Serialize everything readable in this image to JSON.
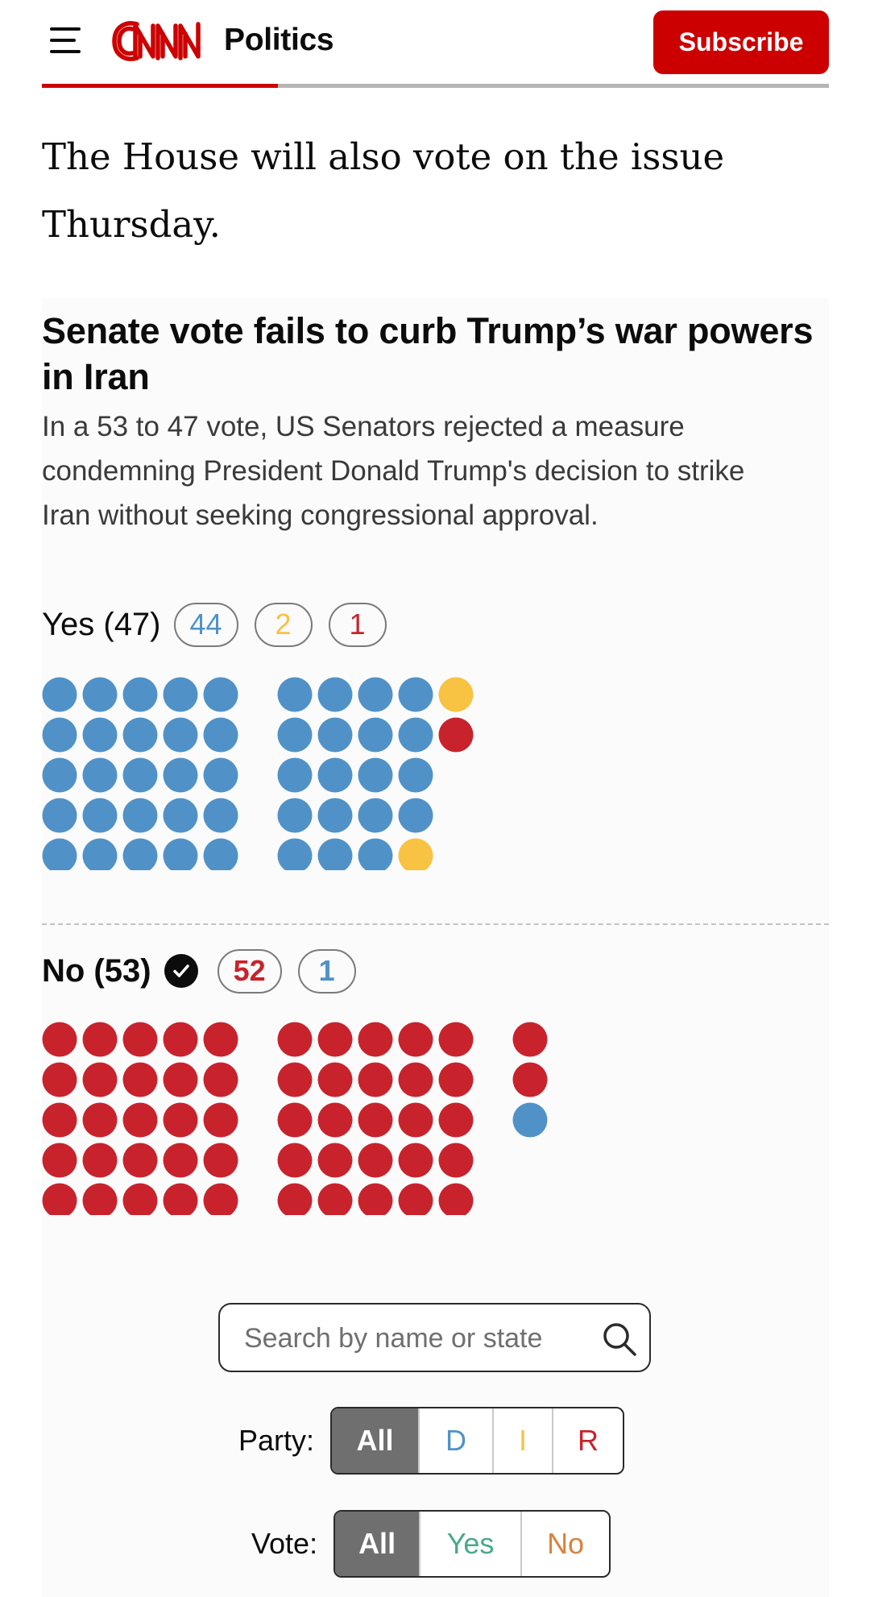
{
  "header": {
    "section": "Politics",
    "logo_text": "CNN",
    "subscribe_label": "Subscribe",
    "read_progress": 0.3
  },
  "article": {
    "paragraph": "The House will also vote on the issue Thursday."
  },
  "graphic": {
    "title": "Senate vote fails to curb Trump’s war powers in Iran",
    "description": "In a 53 to 47 vote, US Senators rejected a measure condemning President Donald Trump's decision to strike Iran without seeking congressional approval.",
    "colors": {
      "D": "#5092c7",
      "I": "#f8c242",
      "R": "#c8232c"
    },
    "yes": {
      "label": "Yes (47)",
      "counts": [
        {
          "party": "D",
          "value": "44"
        },
        {
          "party": "I",
          "value": "2"
        },
        {
          "party": "R",
          "value": "1"
        }
      ],
      "blocks": [
        [
          "D",
          "D",
          "D",
          "D",
          "D",
          "D",
          "D",
          "D",
          "D",
          "D",
          "D",
          "D",
          "D",
          "D",
          "D",
          "D",
          "D",
          "D",
          "D",
          "D",
          "D",
          "D",
          "D",
          "D",
          "D"
        ],
        [
          "D",
          "D",
          "D",
          "D",
          "I",
          "D",
          "D",
          "D",
          "D",
          "R",
          "D",
          "D",
          "D",
          "D",
          null,
          "D",
          "D",
          "D",
          "D",
          null,
          "D",
          "D",
          "D",
          "I",
          null
        ]
      ]
    },
    "no": {
      "label": "No (53)",
      "passed": true,
      "counts": [
        {
          "party": "R",
          "value": "52"
        },
        {
          "party": "D",
          "value": "1"
        }
      ],
      "blocks": [
        [
          "R",
          "R",
          "R",
          "R",
          "R",
          "R",
          "R",
          "R",
          "R",
          "R",
          "R",
          "R",
          "R",
          "R",
          "R",
          "R",
          "R",
          "R",
          "R",
          "R",
          "R",
          "R",
          "R",
          "R",
          "R"
        ],
        [
          "R",
          "R",
          "R",
          "R",
          "R",
          "R",
          "R",
          "R",
          "R",
          "R",
          "R",
          "R",
          "R",
          "R",
          "R",
          "R",
          "R",
          "R",
          "R",
          "R",
          "R",
          "R",
          "R",
          "R",
          "R"
        ],
        [
          "R",
          "R",
          "D"
        ]
      ]
    },
    "search": {
      "placeholder": "Search by name or state",
      "value": ""
    },
    "party_filter": {
      "label": "Party:",
      "options": [
        "All",
        "D",
        "I",
        "R"
      ],
      "selected": "All",
      "option_colors": {
        "D": "#5092c7",
        "I": "#f8c242",
        "R": "#c8232c"
      }
    },
    "vote_filter": {
      "label": "Vote:",
      "options": [
        "All",
        "Yes",
        "No"
      ],
      "selected": "All",
      "option_colors": {
        "Yes": "#4aa88d",
        "No": "#d9823c"
      }
    }
  }
}
